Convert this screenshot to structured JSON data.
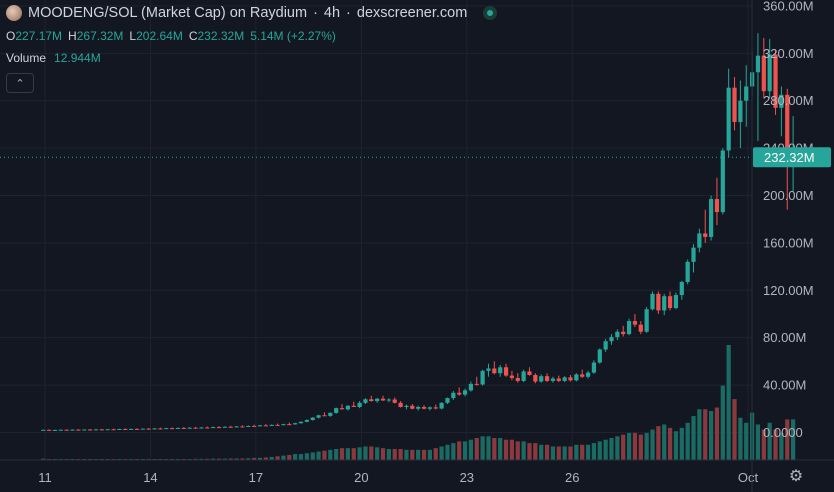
{
  "header": {
    "symbol": "MOODENG/SOL (Market Cap) on Raydium",
    "interval": "4h",
    "source": "dexscreener.com",
    "separator": "·"
  },
  "ohlc": {
    "o_label": "O",
    "o_value": "227.17M",
    "h_label": "H",
    "h_value": "267.32M",
    "l_label": "L",
    "l_value": "202.64M",
    "c_label": "C",
    "c_value": "232.32M",
    "change": "5.14M (+2.27%)"
  },
  "volume": {
    "label": "Volume",
    "value": "12.944M"
  },
  "colors": {
    "up": "#26a69a",
    "down": "#ef5350",
    "up_vol": "#1a6b63",
    "down_vol": "#8a3a3e"
  },
  "chart_data": {
    "type": "candlestick",
    "title": "",
    "xlabel": "",
    "ylabel": "",
    "ylim": [
      -30,
      365
    ],
    "y_ticks": [
      {
        "v": 360,
        "label": "360.00M"
      },
      {
        "v": 320,
        "label": "320.00M"
      },
      {
        "v": 280,
        "label": "280.00M"
      },
      {
        "v": 240,
        "label": "240.00M"
      },
      {
        "v": 200,
        "label": "200.00M"
      },
      {
        "v": 160,
        "label": "160.00M"
      },
      {
        "v": 120,
        "label": "120.00M"
      },
      {
        "v": 80,
        "label": "80.00M"
      },
      {
        "v": 40,
        "label": "40.00M"
      },
      {
        "v": 0,
        "label": "0.0000"
      }
    ],
    "x_ticks": [
      {
        "day": 11,
        "label": "11"
      },
      {
        "day": 14,
        "label": "14"
      },
      {
        "day": 17,
        "label": "17"
      },
      {
        "day": 20,
        "label": "20"
      },
      {
        "day": 23,
        "label": "23"
      },
      {
        "day": 26,
        "label": "26"
      },
      {
        "day": 31,
        "label": "Oct"
      }
    ],
    "x_start_day": 10.95,
    "last_price": 232.32,
    "last_price_label": "232.32M",
    "grid": true,
    "candles": [
      {
        "o": 2,
        "h": 2.5,
        "l": 1.8,
        "c": 2.2,
        "v": 0.8
      },
      {
        "o": 2.2,
        "h": 2.6,
        "l": 1.9,
        "c": 2,
        "v": 0.5
      },
      {
        "o": 2,
        "h": 2.4,
        "l": 1.8,
        "c": 2.1,
        "v": 0.4
      },
      {
        "o": 2.1,
        "h": 2.5,
        "l": 1.9,
        "c": 2.3,
        "v": 0.4
      },
      {
        "o": 2.3,
        "h": 2.6,
        "l": 2,
        "c": 2.2,
        "v": 0.3
      },
      {
        "o": 2.2,
        "h": 2.7,
        "l": 2,
        "c": 2.4,
        "v": 0.3
      },
      {
        "o": 2.4,
        "h": 2.8,
        "l": 2.1,
        "c": 2.3,
        "v": 0.3
      },
      {
        "o": 2.3,
        "h": 2.7,
        "l": 2.1,
        "c": 2.5,
        "v": 0.3
      },
      {
        "o": 2.5,
        "h": 2.9,
        "l": 2.2,
        "c": 2.4,
        "v": 0.3
      },
      {
        "o": 2.4,
        "h": 2.8,
        "l": 2.2,
        "c": 2.6,
        "v": 0.3
      },
      {
        "o": 2.6,
        "h": 3,
        "l": 2.3,
        "c": 2.5,
        "v": 0.3
      },
      {
        "o": 2.5,
        "h": 2.9,
        "l": 2.3,
        "c": 2.7,
        "v": 0.3
      },
      {
        "o": 2.7,
        "h": 3.2,
        "l": 2.4,
        "c": 2.6,
        "v": 0.4
      },
      {
        "o": 2.6,
        "h": 3.1,
        "l": 2.4,
        "c": 2.9,
        "v": 0.4
      },
      {
        "o": 2.9,
        "h": 3.4,
        "l": 2.6,
        "c": 2.8,
        "v": 0.4
      },
      {
        "o": 2.8,
        "h": 3.3,
        "l": 2.6,
        "c": 3,
        "v": 0.4
      },
      {
        "o": 3,
        "h": 3.5,
        "l": 2.7,
        "c": 2.9,
        "v": 0.4
      },
      {
        "o": 2.9,
        "h": 3.4,
        "l": 2.7,
        "c": 3.2,
        "v": 0.5
      },
      {
        "o": 3.2,
        "h": 3.8,
        "l": 2.9,
        "c": 3.1,
        "v": 0.5
      },
      {
        "o": 3.1,
        "h": 3.7,
        "l": 2.9,
        "c": 3.4,
        "v": 0.5
      },
      {
        "o": 3.4,
        "h": 4,
        "l": 3.1,
        "c": 3.3,
        "v": 0.5
      },
      {
        "o": 3.3,
        "h": 3.9,
        "l": 3.1,
        "c": 3.6,
        "v": 0.5
      },
      {
        "o": 3.6,
        "h": 4.2,
        "l": 3.3,
        "c": 3.5,
        "v": 0.6
      },
      {
        "o": 3.5,
        "h": 4.1,
        "l": 3.3,
        "c": 3.8,
        "v": 0.6
      },
      {
        "o": 3.8,
        "h": 4.5,
        "l": 3.5,
        "c": 3.7,
        "v": 0.6
      },
      {
        "o": 3.7,
        "h": 4.4,
        "l": 3.5,
        "c": 4,
        "v": 0.6
      },
      {
        "o": 4,
        "h": 4.7,
        "l": 3.7,
        "c": 3.9,
        "v": 0.7
      },
      {
        "o": 3.9,
        "h": 4.6,
        "l": 3.7,
        "c": 4.2,
        "v": 0.7
      },
      {
        "o": 4.2,
        "h": 5,
        "l": 3.9,
        "c": 4.1,
        "v": 0.7
      },
      {
        "o": 4.1,
        "h": 4.9,
        "l": 3.9,
        "c": 4.5,
        "v": 0.8
      },
      {
        "o": 4.5,
        "h": 5.3,
        "l": 4.2,
        "c": 4.4,
        "v": 0.8
      },
      {
        "o": 4.4,
        "h": 5.2,
        "l": 4.2,
        "c": 4.8,
        "v": 0.8
      },
      {
        "o": 4.8,
        "h": 5.6,
        "l": 4.5,
        "c": 4.7,
        "v": 0.9
      },
      {
        "o": 4.7,
        "h": 5.5,
        "l": 4.5,
        "c": 5.1,
        "v": 0.9
      },
      {
        "o": 5.1,
        "h": 6,
        "l": 4.8,
        "c": 5,
        "v": 0.9
      },
      {
        "o": 5,
        "h": 5.9,
        "l": 4.8,
        "c": 5.5,
        "v": 1
      },
      {
        "o": 5.5,
        "h": 6.5,
        "l": 5.2,
        "c": 5.4,
        "v": 1.2
      },
      {
        "o": 5.4,
        "h": 6.4,
        "l": 5.2,
        "c": 6,
        "v": 1.3
      },
      {
        "o": 6,
        "h": 7,
        "l": 5.7,
        "c": 5.8,
        "v": 1.5
      },
      {
        "o": 5.8,
        "h": 6.8,
        "l": 5.6,
        "c": 6.4,
        "v": 1.8
      },
      {
        "o": 6.4,
        "h": 7.5,
        "l": 6.1,
        "c": 6.2,
        "v": 2.2
      },
      {
        "o": 6.2,
        "h": 7.3,
        "l": 6,
        "c": 7,
        "v": 2.6
      },
      {
        "o": 7,
        "h": 8.3,
        "l": 6.7,
        "c": 6.8,
        "v": 3
      },
      {
        "o": 6.8,
        "h": 8.2,
        "l": 6.5,
        "c": 7.8,
        "v": 3.5
      },
      {
        "o": 7.8,
        "h": 9.4,
        "l": 7.4,
        "c": 9,
        "v": 3.5
      },
      {
        "o": 9,
        "h": 11,
        "l": 8.6,
        "c": 10.5,
        "v": 4
      },
      {
        "o": 10.5,
        "h": 13,
        "l": 10,
        "c": 12.5,
        "v": 4.5
      },
      {
        "o": 12.5,
        "h": 15,
        "l": 11.8,
        "c": 14.5,
        "v": 5
      },
      {
        "o": 14.5,
        "h": 17,
        "l": 13.8,
        "c": 14,
        "v": 5.5
      },
      {
        "o": 14,
        "h": 17,
        "l": 13.2,
        "c": 16.5,
        "v": 6
      },
      {
        "o": 16.5,
        "h": 21,
        "l": 15.8,
        "c": 20.5,
        "v": 6.5
      },
      {
        "o": 20.5,
        "h": 24,
        "l": 19.5,
        "c": 19.5,
        "v": 7
      },
      {
        "o": 19.5,
        "h": 23,
        "l": 18.5,
        "c": 22.5,
        "v": 7
      },
      {
        "o": 22.5,
        "h": 26,
        "l": 21.5,
        "c": 21.5,
        "v": 7
      },
      {
        "o": 21.5,
        "h": 26.5,
        "l": 20.5,
        "c": 25,
        "v": 7.5
      },
      {
        "o": 25,
        "h": 29,
        "l": 24,
        "c": 28,
        "v": 8
      },
      {
        "o": 28,
        "h": 31,
        "l": 26,
        "c": 26.5,
        "v": 8
      },
      {
        "o": 26.5,
        "h": 29,
        "l": 25,
        "c": 28.5,
        "v": 7.5
      },
      {
        "o": 28.5,
        "h": 31,
        "l": 26.5,
        "c": 27,
        "v": 7
      },
      {
        "o": 27,
        "h": 29,
        "l": 25.5,
        "c": 27.8,
        "v": 6.5
      },
      {
        "o": 27.8,
        "h": 29.5,
        "l": 24.5,
        "c": 25,
        "v": 6.5
      },
      {
        "o": 25,
        "h": 26.5,
        "l": 21,
        "c": 21.5,
        "v": 6.5
      },
      {
        "o": 21.5,
        "h": 23.5,
        "l": 19.5,
        "c": 22.5,
        "v": 6
      },
      {
        "o": 22.5,
        "h": 24,
        "l": 19.5,
        "c": 20,
        "v": 6
      },
      {
        "o": 20,
        "h": 22.5,
        "l": 18.5,
        "c": 21.5,
        "v": 6
      },
      {
        "o": 21.5,
        "h": 23,
        "l": 19.5,
        "c": 20,
        "v": 6
      },
      {
        "o": 20,
        "h": 22,
        "l": 18.5,
        "c": 21.2,
        "v": 6
      },
      {
        "o": 21.2,
        "h": 23.5,
        "l": 19.5,
        "c": 20.2,
        "v": 7
      },
      {
        "o": 20.2,
        "h": 25.5,
        "l": 19.5,
        "c": 25,
        "v": 8
      },
      {
        "o": 25,
        "h": 29.5,
        "l": 24,
        "c": 29,
        "v": 9
      },
      {
        "o": 29,
        "h": 35,
        "l": 27.5,
        "c": 33.5,
        "v": 10
      },
      {
        "o": 33.5,
        "h": 38,
        "l": 31,
        "c": 32,
        "v": 11
      },
      {
        "o": 32,
        "h": 37,
        "l": 30.5,
        "c": 35.5,
        "v": 11
      },
      {
        "o": 35.5,
        "h": 43,
        "l": 34.5,
        "c": 41,
        "v": 12
      },
      {
        "o": 41,
        "h": 47,
        "l": 39.5,
        "c": 40.5,
        "v": 13
      },
      {
        "o": 40.5,
        "h": 53,
        "l": 39.5,
        "c": 52,
        "v": 14
      },
      {
        "o": 52,
        "h": 58,
        "l": 47,
        "c": 54,
        "v": 14
      },
      {
        "o": 54,
        "h": 60,
        "l": 49,
        "c": 50,
        "v": 13
      },
      {
        "o": 50,
        "h": 57,
        "l": 47,
        "c": 55,
        "v": 13
      },
      {
        "o": 55,
        "h": 58,
        "l": 47,
        "c": 48,
        "v": 12
      },
      {
        "o": 48,
        "h": 52,
        "l": 44,
        "c": 46,
        "v": 12
      },
      {
        "o": 46,
        "h": 50,
        "l": 42,
        "c": 43.5,
        "v": 11
      },
      {
        "o": 43.5,
        "h": 53,
        "l": 42.5,
        "c": 51.5,
        "v": 11
      },
      {
        "o": 51.5,
        "h": 55,
        "l": 48,
        "c": 48.5,
        "v": 10
      },
      {
        "o": 48.5,
        "h": 50,
        "l": 41.5,
        "c": 43,
        "v": 10
      },
      {
        "o": 43,
        "h": 49,
        "l": 42,
        "c": 47.5,
        "v": 9
      },
      {
        "o": 47.5,
        "h": 50,
        "l": 42.5,
        "c": 43.5,
        "v": 9
      },
      {
        "o": 43.5,
        "h": 47,
        "l": 42,
        "c": 45.5,
        "v": 8
      },
      {
        "o": 45.5,
        "h": 48,
        "l": 42.5,
        "c": 43.5,
        "v": 8
      },
      {
        "o": 43.5,
        "h": 47.5,
        "l": 42.5,
        "c": 46.5,
        "v": 8
      },
      {
        "o": 46.5,
        "h": 48.5,
        "l": 43,
        "c": 44,
        "v": 8
      },
      {
        "o": 44,
        "h": 50,
        "l": 43,
        "c": 49,
        "v": 9
      },
      {
        "o": 49,
        "h": 53,
        "l": 46,
        "c": 47,
        "v": 9
      },
      {
        "o": 47,
        "h": 52,
        "l": 45.5,
        "c": 50.5,
        "v": 9
      },
      {
        "o": 50.5,
        "h": 61,
        "l": 49.5,
        "c": 59,
        "v": 10
      },
      {
        "o": 59,
        "h": 71,
        "l": 58,
        "c": 70,
        "v": 11
      },
      {
        "o": 70,
        "h": 79,
        "l": 68,
        "c": 77,
        "v": 12
      },
      {
        "o": 77,
        "h": 83,
        "l": 74,
        "c": 80.5,
        "v": 13
      },
      {
        "o": 80.5,
        "h": 87,
        "l": 78,
        "c": 85,
        "v": 14
      },
      {
        "o": 85,
        "h": 90,
        "l": 81,
        "c": 83,
        "v": 15
      },
      {
        "o": 83,
        "h": 96,
        "l": 82,
        "c": 94,
        "v": 16
      },
      {
        "o": 94,
        "h": 100,
        "l": 89,
        "c": 91,
        "v": 16
      },
      {
        "o": 91,
        "h": 94,
        "l": 83,
        "c": 85,
        "v": 15
      },
      {
        "o": 85,
        "h": 106,
        "l": 84,
        "c": 104,
        "v": 16
      },
      {
        "o": 104,
        "h": 119,
        "l": 103,
        "c": 117,
        "v": 18
      },
      {
        "o": 117,
        "h": 119,
        "l": 100,
        "c": 103,
        "v": 20
      },
      {
        "o": 103,
        "h": 117,
        "l": 99,
        "c": 115,
        "v": 21
      },
      {
        "o": 115,
        "h": 119,
        "l": 103,
        "c": 105,
        "v": 19
      },
      {
        "o": 105,
        "h": 118,
        "l": 104,
        "c": 116,
        "v": 17
      },
      {
        "o": 116,
        "h": 128,
        "l": 112,
        "c": 127,
        "v": 19
      },
      {
        "o": 127,
        "h": 146,
        "l": 125,
        "c": 144,
        "v": 22
      },
      {
        "o": 144,
        "h": 159,
        "l": 135,
        "c": 156,
        "v": 26
      },
      {
        "o": 156,
        "h": 172,
        "l": 152,
        "c": 168,
        "v": 30
      },
      {
        "o": 168,
        "h": 188,
        "l": 160,
        "c": 165,
        "v": 30
      },
      {
        "o": 165,
        "h": 200,
        "l": 162,
        "c": 197,
        "v": 29
      },
      {
        "o": 197,
        "h": 215,
        "l": 175,
        "c": 186,
        "v": 31
      },
      {
        "o": 186,
        "h": 240,
        "l": 184,
        "c": 238,
        "v": 44
      },
      {
        "o": 238,
        "h": 307,
        "l": 232,
        "c": 291,
        "v": 68
      },
      {
        "o": 291,
        "h": 300,
        "l": 255,
        "c": 262,
        "v": 36
      },
      {
        "o": 262,
        "h": 297,
        "l": 240,
        "c": 280,
        "v": 25
      },
      {
        "o": 280,
        "h": 310,
        "l": 258,
        "c": 292,
        "v": 22
      },
      {
        "o": 292,
        "h": 322,
        "l": 283,
        "c": 304,
        "v": 28
      },
      {
        "o": 304,
        "h": 337,
        "l": 246,
        "c": 318,
        "v": 21
      },
      {
        "o": 318,
        "h": 333,
        "l": 282,
        "c": 288,
        "v": 18
      },
      {
        "o": 288,
        "h": 332,
        "l": 282,
        "c": 319,
        "v": 22
      },
      {
        "o": 319,
        "h": 323,
        "l": 268,
        "c": 274,
        "v": 18
      },
      {
        "o": 274,
        "h": 292,
        "l": 250,
        "c": 285,
        "v": 16
      },
      {
        "o": 285,
        "h": 290,
        "l": 188,
        "c": 227,
        "v": 24
      },
      {
        "o": 227,
        "h": 267,
        "l": 203,
        "c": 232,
        "v": 24
      }
    ]
  }
}
